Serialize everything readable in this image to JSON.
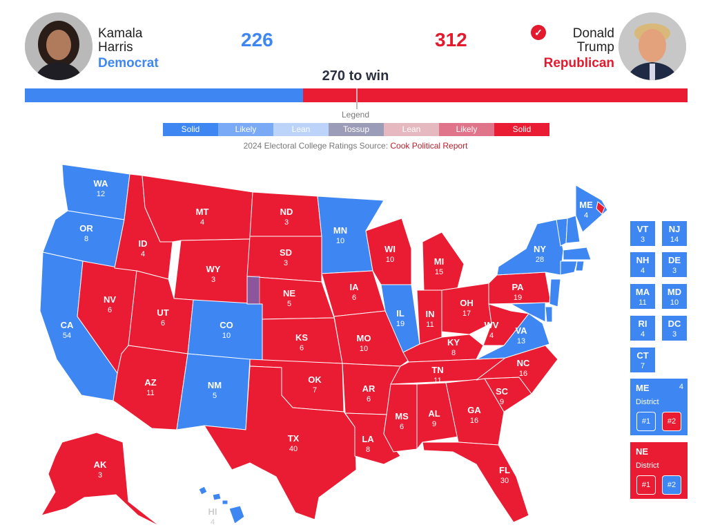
{
  "header": {
    "dem": {
      "first": "Kamala",
      "last": "Harris",
      "party": "Democrat",
      "votes": "226",
      "color": "#3e87f3"
    },
    "rep": {
      "first": "Donald",
      "last": "Trump",
      "party": "Republican",
      "votes": "312",
      "color": "#ea1c33"
    },
    "to_win": "270 to win",
    "winner_icon": "check-circle-icon"
  },
  "legend": {
    "title": "Legend",
    "items": [
      {
        "label": "Solid",
        "color": "#3e87f3"
      },
      {
        "label": "Likely",
        "color": "#7aa9f5"
      },
      {
        "label": "Lean",
        "color": "#bcd4f9"
      },
      {
        "label": "Tossup",
        "color": "#9a9cb8"
      },
      {
        "label": "Lean",
        "color": "#e6b9c0"
      },
      {
        "label": "Likely",
        "color": "#e0748a"
      },
      {
        "label": "Solid",
        "color": "#ea1c33"
      }
    ]
  },
  "source": {
    "prefix": "2024 Electoral College Ratings Source: ",
    "link": "Cook Political Report"
  },
  "states": [
    {
      "abbr": "WA",
      "ev": "12",
      "party": "D"
    },
    {
      "abbr": "OR",
      "ev": "8",
      "party": "D"
    },
    {
      "abbr": "CA",
      "ev": "54",
      "party": "D"
    },
    {
      "abbr": "NV",
      "ev": "6",
      "party": "R"
    },
    {
      "abbr": "ID",
      "ev": "4",
      "party": "R"
    },
    {
      "abbr": "MT",
      "ev": "4",
      "party": "R"
    },
    {
      "abbr": "WY",
      "ev": "3",
      "party": "R"
    },
    {
      "abbr": "UT",
      "ev": "6",
      "party": "R"
    },
    {
      "abbr": "AZ",
      "ev": "11",
      "party": "R"
    },
    {
      "abbr": "CO",
      "ev": "10",
      "party": "D"
    },
    {
      "abbr": "NM",
      "ev": "5",
      "party": "D"
    },
    {
      "abbr": "ND",
      "ev": "3",
      "party": "R"
    },
    {
      "abbr": "SD",
      "ev": "3",
      "party": "R"
    },
    {
      "abbr": "NE",
      "ev": "5",
      "party": "R"
    },
    {
      "abbr": "KS",
      "ev": "6",
      "party": "R"
    },
    {
      "abbr": "OK",
      "ev": "7",
      "party": "R"
    },
    {
      "abbr": "TX",
      "ev": "40",
      "party": "R"
    },
    {
      "abbr": "MN",
      "ev": "10",
      "party": "D"
    },
    {
      "abbr": "IA",
      "ev": "6",
      "party": "R"
    },
    {
      "abbr": "MO",
      "ev": "10",
      "party": "R"
    },
    {
      "abbr": "AR",
      "ev": "6",
      "party": "R"
    },
    {
      "abbr": "LA",
      "ev": "8",
      "party": "R"
    },
    {
      "abbr": "WI",
      "ev": "10",
      "party": "R"
    },
    {
      "abbr": "IL",
      "ev": "19",
      "party": "D"
    },
    {
      "abbr": "MI",
      "ev": "15",
      "party": "R"
    },
    {
      "abbr": "IN",
      "ev": "11",
      "party": "R"
    },
    {
      "abbr": "OH",
      "ev": "17",
      "party": "R"
    },
    {
      "abbr": "KY",
      "ev": "8",
      "party": "R"
    },
    {
      "abbr": "TN",
      "ev": "11",
      "party": "R"
    },
    {
      "abbr": "MS",
      "ev": "6",
      "party": "R"
    },
    {
      "abbr": "AL",
      "ev": "9",
      "party": "R"
    },
    {
      "abbr": "GA",
      "ev": "16",
      "party": "R"
    },
    {
      "abbr": "FL",
      "ev": "30",
      "party": "R"
    },
    {
      "abbr": "SC",
      "ev": "9",
      "party": "R"
    },
    {
      "abbr": "NC",
      "ev": "16",
      "party": "R"
    },
    {
      "abbr": "VA",
      "ev": "13",
      "party": "D"
    },
    {
      "abbr": "WV",
      "ev": "4",
      "party": "R"
    },
    {
      "abbr": "PA",
      "ev": "19",
      "party": "R"
    },
    {
      "abbr": "NY",
      "ev": "28",
      "party": "D"
    },
    {
      "abbr": "ME",
      "ev": "4",
      "party": "D"
    },
    {
      "abbr": "AK",
      "ev": "3",
      "party": "R"
    },
    {
      "abbr": "HI",
      "ev": "4",
      "party": "D"
    }
  ],
  "small_states": [
    {
      "abbr": "VT",
      "ev": "3"
    },
    {
      "abbr": "NJ",
      "ev": "14"
    },
    {
      "abbr": "NH",
      "ev": "4"
    },
    {
      "abbr": "DE",
      "ev": "3"
    },
    {
      "abbr": "MA",
      "ev": "11"
    },
    {
      "abbr": "MD",
      "ev": "10"
    },
    {
      "abbr": "RI",
      "ev": "4"
    },
    {
      "abbr": "DC",
      "ev": "3"
    },
    {
      "abbr": "CT",
      "ev": "7"
    }
  ],
  "districts": [
    {
      "state": "ME",
      "ev": "4",
      "label": "District",
      "d1": "#1",
      "d2": "#2",
      "color": "#3e87f3",
      "d1_color": "#3e87f3",
      "d2_color": "#ea1c33"
    },
    {
      "state": "NE",
      "ev": "",
      "label": "District",
      "d1": "#1",
      "d2": "#2",
      "color": "#ea1c33",
      "d1_color": "#ea1c33",
      "d2_color": "#3e87f3"
    }
  ]
}
